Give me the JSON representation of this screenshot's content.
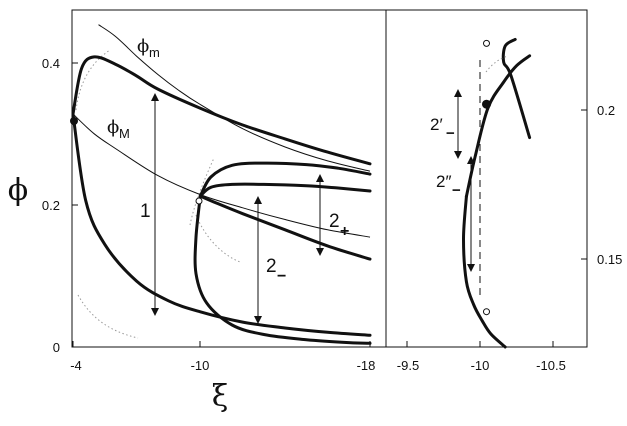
{
  "chart_data": [
    {
      "type": "line",
      "panel": "main",
      "xlabel": "ξ",
      "ylabel": "ϕ",
      "xlim": [
        -4,
        -18
      ],
      "ylim": [
        0,
        0.46
      ],
      "x_ticks": [
        "-4",
        "-10",
        "-18"
      ],
      "y_ticks": [
        "0",
        "0.2",
        "0.4"
      ],
      "curve_labels": {
        "phi_m": "ϕ",
        "phi_m_sub": "m",
        "phi_M": "ϕ",
        "phi_M_sub": "M"
      },
      "annotations": [
        {
          "label": "1",
          "sub": ""
        },
        {
          "label": "2",
          "sub": "+"
        },
        {
          "label": "2",
          "sub": "−"
        }
      ],
      "series": [
        {
          "name": "ϕm",
          "x": [
            -5.2,
            -6,
            -7,
            -8,
            -9,
            -10,
            -12,
            -14,
            -16,
            -18
          ],
          "y": [
            0.44,
            0.424,
            0.397,
            0.372,
            0.35,
            0.331,
            0.298,
            0.273,
            0.254,
            0.24
          ]
        },
        {
          "name": "ϕM",
          "x": [
            -4,
            -5,
            -6,
            -8,
            -10,
            -12,
            -14,
            -16,
            -18
          ],
          "y": [
            0.318,
            0.291,
            0.271,
            0.234,
            0.208,
            0.19,
            0.174,
            0.16,
            0.15
          ]
        },
        {
          "x": [
            -4,
            -4.4,
            -5,
            -6,
            -7,
            -8,
            -10,
            -12,
            -14,
            -16,
            -18
          ],
          "y": [
            0.318,
            0.38,
            0.396,
            0.386,
            0.37,
            0.352,
            0.326,
            0.303,
            0.284,
            0.266,
            0.25
          ]
        },
        {
          "x": [
            -4,
            -4.6,
            -5.5,
            -7,
            -8.5,
            -10,
            -12,
            -14,
            -16,
            -18
          ],
          "y": [
            0.318,
            0.2,
            0.14,
            0.09,
            0.063,
            0.048,
            0.034,
            0.026,
            0.02,
            0.016
          ]
        },
        {
          "x": [
            -10,
            -10.5,
            -11.5,
            -13,
            -15,
            -16.5,
            -18
          ],
          "y": [
            0.206,
            0.232,
            0.248,
            0.251,
            0.249,
            0.244,
            0.236
          ]
        },
        {
          "x": [
            -10,
            -10.5,
            -11.5,
            -13,
            -15,
            -16.5,
            -18
          ],
          "y": [
            0.206,
            0.218,
            0.222,
            0.222,
            0.22,
            0.217,
            0.213
          ]
        },
        {
          "x": [
            -10,
            -10.8,
            -12,
            -14,
            -16,
            -18
          ],
          "y": [
            0.206,
            0.196,
            0.182,
            0.16,
            0.138,
            0.12
          ]
        },
        {
          "x": [
            -10,
            -9.8,
            -9.8,
            -10.3,
            -11.5,
            -13,
            -15,
            -17,
            -18
          ],
          "y": [
            0.206,
            0.15,
            0.1,
            0.06,
            0.03,
            0.017,
            0.01,
            0.006,
            0.005
          ]
        }
      ]
    },
    {
      "type": "line",
      "panel": "inset",
      "xlim": [
        -9.3,
        -10.7
      ],
      "ylim": [
        0.127,
        0.23
      ],
      "x_ticks": [
        "-9.5",
        "-10",
        "-10.5"
      ],
      "y_ticks": [
        "0.2",
        "0.15"
      ],
      "annotations": [
        {
          "label": "2′",
          "sub": "−"
        },
        {
          "label": "2″",
          "sub": "−"
        }
      ],
      "series": [
        {
          "x": [
            -10.2,
            -10.13,
            -10.12,
            -10.17,
            -10.3
          ],
          "y": [
            0.221,
            0.219,
            0.214,
            0.21,
            0.191
          ]
        },
        {
          "x": [
            -10.3,
            -10.21,
            -10.12,
            -10.01,
            -9.92,
            -9.86
          ],
          "y": [
            0.216,
            0.213,
            0.208,
            0.2,
            0.185,
            0.173
          ]
        },
        {
          "x": [
            -9.86,
            -9.84,
            -9.86,
            -9.91,
            -9.97,
            -10.03,
            -10.13
          ],
          "y": [
            0.173,
            0.16,
            0.147,
            0.14,
            0.135,
            0.131,
            0.127
          ]
        }
      ],
      "points": [
        {
          "x": -10.0,
          "y": 0.2198,
          "filled": false
        },
        {
          "x": -10.0,
          "y": 0.2012,
          "filled": true
        },
        {
          "x": -10.0,
          "y": 0.1378,
          "filled": false
        }
      ]
    }
  ]
}
